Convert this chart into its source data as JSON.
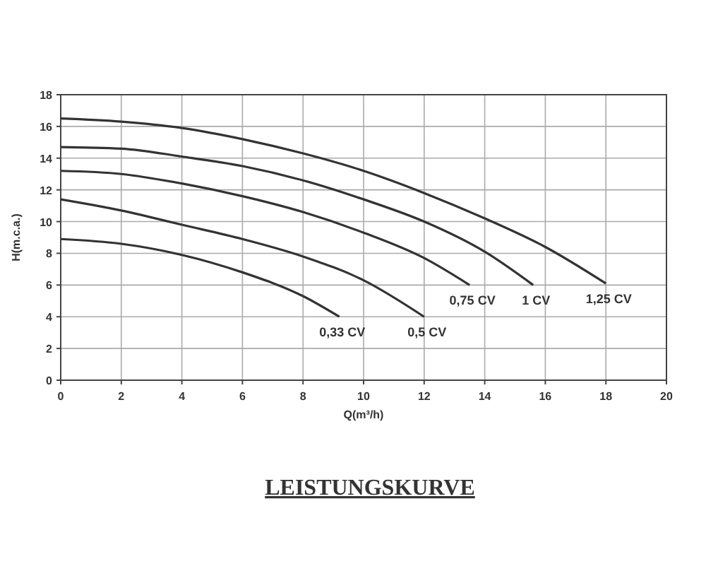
{
  "chart_data": {
    "type": "line",
    "title": "LEISTUNGSKURVE",
    "xlabel": "Q(m³/h)",
    "ylabel": "H(m.c.a.)",
    "xlim": [
      0,
      20
    ],
    "ylim": [
      0,
      18
    ],
    "xticks": [
      0,
      2,
      4,
      6,
      8,
      10,
      12,
      14,
      16,
      18,
      20
    ],
    "yticks": [
      0,
      2,
      4,
      6,
      8,
      10,
      12,
      14,
      16,
      18
    ],
    "grid": true,
    "marker": "none",
    "line_style": "solid",
    "series": [
      {
        "name": "0,33 CV",
        "color": "#333333",
        "x": [
          0,
          2,
          4,
          6,
          8,
          9.2
        ],
        "values": [
          8.9,
          8.6,
          7.9,
          6.8,
          5.3,
          4.0
        ]
      },
      {
        "name": "0,5 CV",
        "color": "#333333",
        "x": [
          0,
          2,
          4,
          6,
          8,
          10,
          12
        ],
        "values": [
          11.4,
          10.7,
          9.8,
          8.9,
          7.8,
          6.3,
          4.0
        ]
      },
      {
        "name": "0,75 CV",
        "color": "#333333",
        "x": [
          0,
          2,
          4,
          6,
          8,
          10,
          12,
          13.5
        ],
        "values": [
          13.2,
          13.0,
          12.4,
          11.6,
          10.6,
          9.3,
          7.7,
          6.0
        ]
      },
      {
        "name": "1 CV",
        "color": "#333333",
        "x": [
          0,
          2,
          4,
          6,
          8,
          10,
          12,
          14,
          15.6
        ],
        "values": [
          14.7,
          14.6,
          14.1,
          13.5,
          12.6,
          11.4,
          10.0,
          8.1,
          6.0
        ]
      },
      {
        "name": "1,25 CV",
        "color": "#333333",
        "x": [
          0,
          2,
          4,
          6,
          8,
          10,
          12,
          14,
          16,
          18
        ],
        "values": [
          16.5,
          16.3,
          15.9,
          15.2,
          14.3,
          13.2,
          11.8,
          10.2,
          8.4,
          6.1
        ]
      }
    ]
  }
}
